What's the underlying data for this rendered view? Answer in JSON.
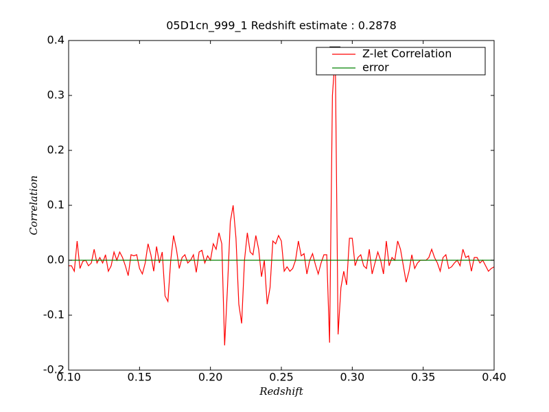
{
  "chart_data": {
    "type": "line",
    "title": "05D1cn_999_1 Redshift estimate : 0.2878",
    "x_label": "Redshift",
    "y_label": "Correlation",
    "x": [
      0.1,
      0.102,
      0.104,
      0.106,
      0.108,
      0.11,
      0.112,
      0.114,
      0.116,
      0.118,
      0.12,
      0.122,
      0.124,
      0.126,
      0.128,
      0.13,
      0.132,
      0.134,
      0.136,
      0.138,
      0.14,
      0.142,
      0.144,
      0.146,
      0.148,
      0.15,
      0.152,
      0.154,
      0.156,
      0.158,
      0.16,
      0.162,
      0.164,
      0.166,
      0.168,
      0.17,
      0.172,
      0.174,
      0.176,
      0.178,
      0.18,
      0.182,
      0.184,
      0.186,
      0.188,
      0.19,
      0.192,
      0.194,
      0.196,
      0.198,
      0.2,
      0.202,
      0.204,
      0.206,
      0.208,
      0.21,
      0.212,
      0.214,
      0.216,
      0.218,
      0.22,
      0.222,
      0.224,
      0.226,
      0.228,
      0.23,
      0.232,
      0.234,
      0.236,
      0.238,
      0.24,
      0.242,
      0.244,
      0.246,
      0.248,
      0.25,
      0.252,
      0.254,
      0.256,
      0.258,
      0.26,
      0.262,
      0.264,
      0.266,
      0.268,
      0.27,
      0.272,
      0.274,
      0.276,
      0.278,
      0.28,
      0.282,
      0.284,
      0.286,
      0.288,
      0.29,
      0.292,
      0.294,
      0.296,
      0.298,
      0.3,
      0.302,
      0.304,
      0.306,
      0.308,
      0.31,
      0.312,
      0.314,
      0.316,
      0.318,
      0.32,
      0.322,
      0.324,
      0.326,
      0.328,
      0.33,
      0.332,
      0.334,
      0.336,
      0.338,
      0.34,
      0.342,
      0.344,
      0.346,
      0.348,
      0.35,
      0.352,
      0.354,
      0.356,
      0.358,
      0.36,
      0.362,
      0.364,
      0.366,
      0.368,
      0.37,
      0.372,
      0.374,
      0.376,
      0.378,
      0.38,
      0.382,
      0.384,
      0.386,
      0.388,
      0.39,
      0.392,
      0.394,
      0.396,
      0.398,
      0.4
    ],
    "series": [
      {
        "name": "Z-let Correlation",
        "color": "#ff0000",
        "values": [
          -0.01,
          -0.01,
          -0.02,
          0.035,
          -0.015,
          -0.002,
          0,
          -0.01,
          -0.005,
          0.02,
          -0.005,
          0.005,
          -0.005,
          0.01,
          -0.02,
          -0.01,
          0.015,
          0,
          0.015,
          0.005,
          -0.01,
          -0.028,
          0.01,
          0.008,
          0.01,
          -0.015,
          -0.025,
          -0.005,
          0.03,
          0.01,
          -0.02,
          0.025,
          -0.005,
          0.015,
          -0.065,
          -0.075,
          0,
          0.045,
          0.02,
          -0.015,
          0.005,
          0.01,
          -0.005,
          0,
          0.01,
          -0.022,
          0.015,
          0.018,
          -0.005,
          0.008,
          0,
          0.03,
          0.02,
          0.05,
          0.03,
          -0.155,
          -0.05,
          0.07,
          0.1,
          0.04,
          -0.08,
          -0.115,
          0,
          0.05,
          0.015,
          0.01,
          0.045,
          0.02,
          -0.03,
          0,
          -0.08,
          -0.05,
          0.035,
          0.03,
          0.045,
          0.035,
          -0.02,
          -0.012,
          -0.02,
          -0.015,
          0,
          0.035,
          0.008,
          0.012,
          -0.025,
          0,
          0.012,
          -0.008,
          -0.025,
          -0.005,
          0.01,
          0.01,
          -0.15,
          0.3,
          0.375,
          -0.135,
          -0.05,
          -0.02,
          -0.045,
          0.04,
          0.04,
          -0.01,
          0.005,
          0.01,
          -0.01,
          -0.015,
          0.02,
          -0.025,
          -0.005,
          0.015,
          0,
          -0.025,
          0.035,
          -0.01,
          0.005,
          0,
          0.035,
          0.02,
          -0.01,
          -0.04,
          -0.02,
          0.01,
          -0.015,
          -0.005,
          0,
          0,
          0,
          0.005,
          0.02,
          0.005,
          -0.005,
          -0.02,
          0.005,
          0.01,
          -0.015,
          -0.012,
          -0.005,
          0,
          -0.01,
          0.02,
          0.005,
          0.008,
          -0.02,
          0.005,
          0.005,
          -0.005,
          0,
          -0.01,
          -0.02,
          -0.015,
          -0.012
        ]
      },
      {
        "name": "error",
        "color": "#008000",
        "values": [
          0,
          0,
          0,
          0,
          0,
          0,
          0,
          0,
          0,
          0,
          0,
          0,
          0,
          0,
          0,
          0,
          0,
          0,
          0,
          0,
          0,
          0,
          0,
          0,
          0,
          0,
          0,
          0,
          0,
          0,
          0,
          0,
          0,
          0,
          0,
          0,
          0,
          0,
          0,
          0,
          0,
          0,
          0,
          0,
          0,
          0,
          0,
          0,
          0,
          0,
          0,
          0,
          0,
          0,
          0,
          0,
          0,
          0,
          0,
          0,
          0,
          0,
          0,
          0,
          0,
          0,
          0,
          0,
          0,
          0,
          0,
          0,
          0,
          0,
          0,
          0,
          0,
          0,
          0,
          0,
          0,
          0,
          0,
          0,
          0,
          0,
          0,
          0,
          0,
          0,
          0,
          0,
          0,
          0,
          0,
          0,
          0,
          0,
          0,
          0,
          0,
          0,
          0,
          0,
          0,
          0,
          0,
          0,
          0,
          0,
          0,
          0,
          0,
          0,
          0,
          0,
          0,
          0,
          0,
          0,
          0,
          0,
          0,
          0,
          0,
          0,
          0,
          0,
          0,
          0,
          0,
          0,
          0,
          0,
          0,
          0,
          0,
          0,
          0,
          0,
          0,
          0,
          0,
          0,
          0,
          0,
          0,
          0,
          0,
          0,
          0
        ]
      }
    ],
    "peak_marker": {
      "x": 0.2878,
      "y": 0.38
    },
    "xlim": [
      0.1,
      0.4
    ],
    "xticks": [
      {
        "value": 0.1,
        "label": "0.10"
      },
      0.15,
      {
        "value": 0.2,
        "label": "0.20"
      },
      0.25,
      {
        "value": 0.3,
        "label": "0.30"
      },
      0.35,
      {
        "value": 0.4,
        "label": "0.40"
      }
    ],
    "ylim": [
      -0.2,
      0.4
    ],
    "yticks": [
      -0.2,
      -0.1,
      {
        "value": 0,
        "label": "0.0"
      },
      0.1,
      0.2,
      0.3,
      0.4
    ],
    "legend": "upper right",
    "grid": false
  }
}
